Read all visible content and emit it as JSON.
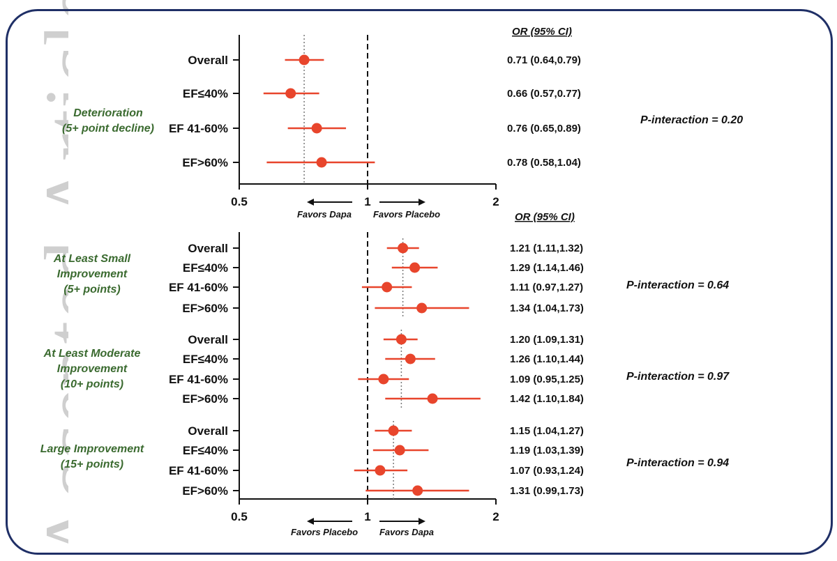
{
  "watermark": "Accepted Article",
  "colors": {
    "marker": "#e8452c",
    "axis": "#111111",
    "group_label": "#3a6a2f",
    "frame": "#1f2f66"
  },
  "chart_data": [
    {
      "type": "forest",
      "x_ticks": [
        0.5,
        1,
        2
      ],
      "x_tick_labels": [
        "0.5",
        "1",
        "2"
      ],
      "xlim": [
        0.5,
        2
      ],
      "x_scale": "log",
      "reference_line": 1,
      "overall_line": 0.71,
      "favors_left": "Favors Dapa",
      "favors_right": "Favors Placebo",
      "or_header": "OR (95% CI)",
      "groups": [
        {
          "label_lines": [
            "Deterioration",
            "(5+ point decline)"
          ],
          "p_interaction": "P-interaction = 0.20",
          "rows": [
            {
              "label": "Overall",
              "or": 0.71,
              "lo": 0.64,
              "hi": 0.79,
              "text": "0.71 (0.64,0.79)"
            },
            {
              "label": "EF≤40%",
              "or": 0.66,
              "lo": 0.57,
              "hi": 0.77,
              "text": "0.66 (0.57,0.77)"
            },
            {
              "label": "EF 41-60%",
              "or": 0.76,
              "lo": 0.65,
              "hi": 0.89,
              "text": "0.76 (0.65,0.89)"
            },
            {
              "label": "EF>60%",
              "or": 0.78,
              "lo": 0.58,
              "hi": 1.04,
              "text": "0.78 (0.58,1.04)"
            }
          ]
        }
      ]
    },
    {
      "type": "forest",
      "x_ticks": [
        0.5,
        1,
        2
      ],
      "x_tick_labels": [
        "0.5",
        "1",
        "2"
      ],
      "xlim": [
        0.5,
        2
      ],
      "x_scale": "log",
      "reference_line": 1,
      "favors_left": "Favors Placebo",
      "favors_right": "Favors Dapa",
      "or_header": "OR (95% CI)",
      "groups": [
        {
          "label_lines": [
            "At Least Small",
            "Improvement",
            "(5+ points)"
          ],
          "p_interaction": "P-interaction = 0.64",
          "overall_line": 1.21,
          "rows": [
            {
              "label": "Overall",
              "or": 1.21,
              "lo": 1.11,
              "hi": 1.32,
              "text": "1.21 (1.11,1.32)"
            },
            {
              "label": "EF≤40%",
              "or": 1.29,
              "lo": 1.14,
              "hi": 1.46,
              "text": "1.29 (1.14,1.46)"
            },
            {
              "label": "EF 41-60%",
              "or": 1.11,
              "lo": 0.97,
              "hi": 1.27,
              "text": "1.11 (0.97,1.27)"
            },
            {
              "label": "EF>60%",
              "or": 1.34,
              "lo": 1.04,
              "hi": 1.73,
              "text": "1.34 (1.04,1.73)"
            }
          ]
        },
        {
          "label_lines": [
            "At Least Moderate",
            "Improvement",
            "(10+ points)"
          ],
          "p_interaction": "P-interaction = 0.97",
          "overall_line": 1.2,
          "rows": [
            {
              "label": "Overall",
              "or": 1.2,
              "lo": 1.09,
              "hi": 1.31,
              "text": "1.20 (1.09,1.31)"
            },
            {
              "label": "EF≤40%",
              "or": 1.26,
              "lo": 1.1,
              "hi": 1.44,
              "text": "1.26 (1.10,1.44)"
            },
            {
              "label": "EF 41-60%",
              "or": 1.09,
              "lo": 0.95,
              "hi": 1.25,
              "text": "1.09 (0.95,1.25)"
            },
            {
              "label": "EF>60%",
              "or": 1.42,
              "lo": 1.1,
              "hi": 1.84,
              "text": "1.42 (1.10,1.84)"
            }
          ]
        },
        {
          "label_lines": [
            "Large Improvement",
            "(15+ points)"
          ],
          "p_interaction": "P-interaction = 0.94",
          "overall_line": 1.15,
          "rows": [
            {
              "label": "Overall",
              "or": 1.15,
              "lo": 1.04,
              "hi": 1.27,
              "text": "1.15 (1.04,1.27)"
            },
            {
              "label": "EF≤40%",
              "or": 1.19,
              "lo": 1.03,
              "hi": 1.39,
              "text": "1.19 (1.03,1.39)"
            },
            {
              "label": "EF 41-60%",
              "or": 1.07,
              "lo": 0.93,
              "hi": 1.24,
              "text": "1.07 (0.93,1.24)"
            },
            {
              "label": "EF>60%",
              "or": 1.31,
              "lo": 0.99,
              "hi": 1.73,
              "text": "1.31 (0.99,1.73)"
            }
          ]
        }
      ]
    }
  ]
}
